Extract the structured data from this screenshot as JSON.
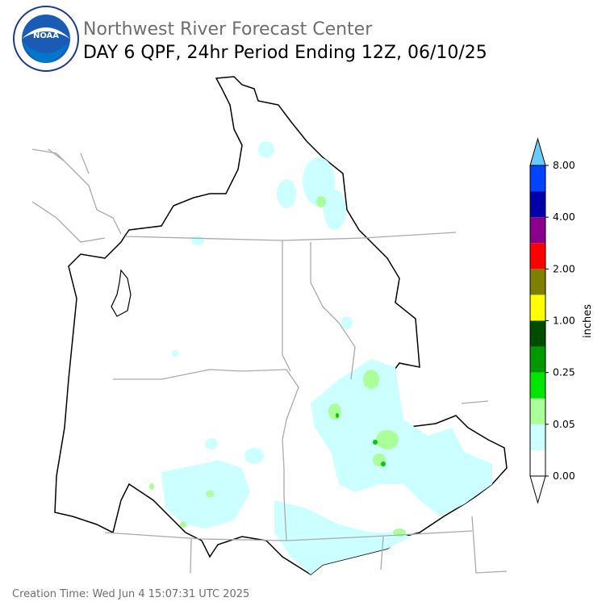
{
  "header": {
    "logo_text": "NOAA",
    "title": "Northwest River Forecast Center",
    "subtitle": "DAY 6 QPF, 24hr Period Ending 12Z, 06/10/25"
  },
  "legend": {
    "title": "inches",
    "ticks": [
      "0.00",
      "0.05",
      "0.25",
      "1.00",
      "2.00",
      "4.00",
      "8.00"
    ],
    "colors": [
      "#ffffff",
      "#ccffff",
      "#aaff99",
      "#00e600",
      "#009900",
      "#004d00",
      "#ffff00",
      "#808000",
      "#ff0000",
      "#8b008b",
      "#0000aa",
      "#0044ff"
    ],
    "over_color": "#66ccff",
    "under_color": "#ffffff"
  },
  "footer": {
    "creation_time": "Creation Time: Wed Jun 4 15:07:31 UTC 2025"
  }
}
